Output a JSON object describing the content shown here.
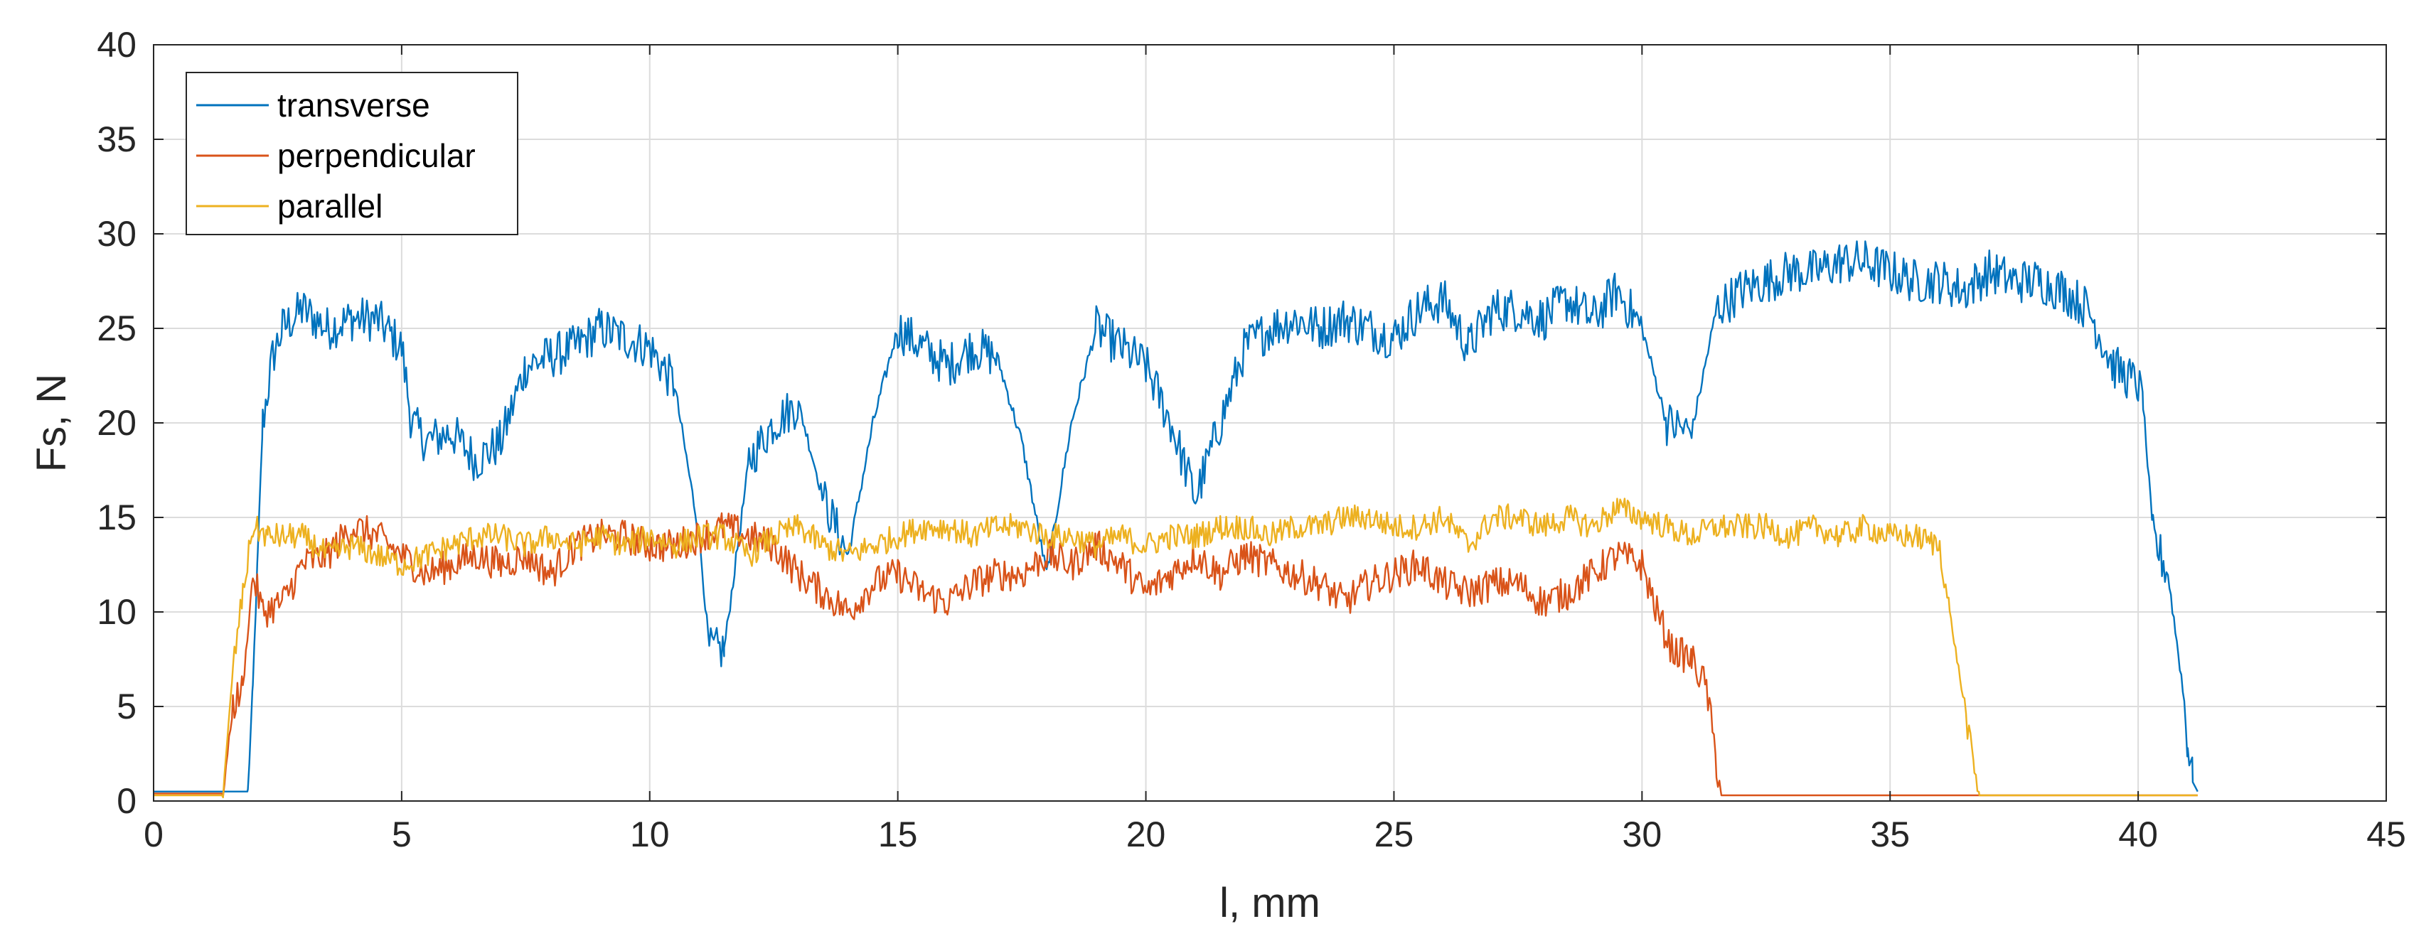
{
  "chart_data": {
    "type": "line",
    "title": "",
    "xlabel": "l, mm",
    "ylabel": "Fs, N",
    "xlim": [
      0,
      45
    ],
    "ylim": [
      0,
      40
    ],
    "xticks": [
      0,
      5,
      10,
      15,
      20,
      25,
      30,
      35,
      40,
      45
    ],
    "yticks": [
      0,
      5,
      10,
      15,
      20,
      25,
      30,
      35,
      40
    ],
    "grid": true,
    "legend_position": "top-left",
    "series": [
      {
        "name": "transverse",
        "color": "#0072BD",
        "x": [
          0,
          1.9,
          2.0,
          2.1,
          2.2,
          2.4,
          2.6,
          3.0,
          3.5,
          4.0,
          4.5,
          5.0,
          5.2,
          5.5,
          6.0,
          6.5,
          7.0,
          7.5,
          8.0,
          8.5,
          9.0,
          9.5,
          10.0,
          10.5,
          11.0,
          11.2,
          11.5,
          12.0,
          12.5,
          13.0,
          13.5,
          14.0,
          14.5,
          15.0,
          15.5,
          16.0,
          16.5,
          17.0,
          17.5,
          18.0,
          18.5,
          19.0,
          19.5,
          20.0,
          20.5,
          21.0,
          21.5,
          22.0,
          22.5,
          23.0,
          23.5,
          24.0,
          24.5,
          25.0,
          25.5,
          26.0,
          26.5,
          27.0,
          27.5,
          28.0,
          28.5,
          29.0,
          29.5,
          30.0,
          30.5,
          31.0,
          31.5,
          32.0,
          32.5,
          33.0,
          33.5,
          34.0,
          34.5,
          35.0,
          35.5,
          36.0,
          36.5,
          37.0,
          37.5,
          38.0,
          38.5,
          39.0,
          39.5,
          40.0,
          40.1,
          40.3,
          40.6,
          40.9,
          41.0,
          41.1,
          41.2
        ],
        "y": [
          0.5,
          0.5,
          6,
          13,
          20,
          23.5,
          25,
          26,
          25,
          25.5,
          25.5,
          24,
          20,
          19,
          19.5,
          18,
          19,
          23,
          23.5,
          24,
          25,
          24.5,
          24,
          22,
          14,
          8,
          8,
          18,
          20,
          21,
          16,
          13,
          20,
          25,
          24,
          23,
          24,
          23.5,
          19,
          12,
          20,
          25,
          24,
          23,
          20,
          16,
          20,
          24,
          25,
          25.5,
          25,
          25.5,
          25,
          24.5,
          26,
          26.5,
          24,
          26,
          26,
          25.5,
          26.5,
          25.5,
          27,
          25,
          20,
          19.5,
          26,
          27,
          27.5,
          28,
          28,
          28.5,
          28.5,
          28,
          27.5,
          27.5,
          27,
          28,
          27.5,
          27.5,
          27,
          26,
          23,
          22,
          21,
          14,
          12,
          6,
          3,
          1,
          0.5
        ],
        "noise": 1.2
      },
      {
        "name": "perpendicular",
        "color": "#D95319",
        "x": [
          0,
          1.4,
          1.6,
          1.8,
          2.0,
          2.2,
          2.6,
          3.0,
          3.5,
          4.0,
          4.5,
          5.0,
          5.5,
          6.0,
          6.5,
          7.0,
          7.5,
          8.0,
          8.5,
          9.0,
          9.5,
          10.0,
          10.5,
          11.0,
          11.5,
          12.0,
          12.5,
          13.0,
          13.5,
          14.0,
          14.5,
          15.0,
          15.5,
          16.0,
          16.5,
          17.0,
          17.5,
          18.0,
          18.5,
          19.0,
          19.5,
          20.0,
          20.5,
          21.0,
          21.5,
          22.0,
          22.5,
          23.0,
          23.5,
          24.0,
          24.5,
          25.0,
          25.5,
          26.0,
          26.5,
          27.0,
          27.5,
          28.0,
          28.5,
          29.0,
          29.5,
          30.0,
          30.3,
          30.6,
          31.0,
          31.3,
          31.5,
          31.6,
          41.2
        ],
        "y": [
          0.4,
          0.4,
          5,
          6,
          12,
          10,
          10.5,
          12.5,
          13,
          14.5,
          14,
          13,
          12,
          12.5,
          13,
          12.5,
          13,
          12,
          13.5,
          14,
          14,
          13.5,
          13.5,
          14,
          14.5,
          14,
          13.5,
          12,
          11,
          10,
          11.5,
          12,
          11,
          10.5,
          11.5,
          12,
          12,
          13,
          12.5,
          13.5,
          12.5,
          11,
          12,
          13,
          12,
          13,
          12.5,
          12,
          11.5,
          10.5,
          11.5,
          12,
          12.5,
          11.5,
          11,
          11.5,
          11.5,
          10.5,
          11,
          12,
          13,
          12.5,
          10,
          8,
          7.5,
          6,
          2,
          0.3,
          0.3
        ],
        "noise": 0.9
      },
      {
        "name": "parallel",
        "color": "#EDB120",
        "x": [
          0,
          1.4,
          1.6,
          1.8,
          2.0,
          2.3,
          2.6,
          3.0,
          3.5,
          4.0,
          4.5,
          5.0,
          5.5,
          6.0,
          6.5,
          7.0,
          7.5,
          8.0,
          8.5,
          9.0,
          9.5,
          10.0,
          10.5,
          11.0,
          11.5,
          12.0,
          12.5,
          13.0,
          13.5,
          14.0,
          14.5,
          15.0,
          15.5,
          16.0,
          16.5,
          17.0,
          17.5,
          18.0,
          18.5,
          19.0,
          19.5,
          20.0,
          20.5,
          21.0,
          21.5,
          22.0,
          22.5,
          23.0,
          23.5,
          24.0,
          24.5,
          25.0,
          25.5,
          26.0,
          26.5,
          27.0,
          27.5,
          28.0,
          28.5,
          29.0,
          29.5,
          30.0,
          30.5,
          31.0,
          31.5,
          32.0,
          32.5,
          33.0,
          33.5,
          34.0,
          34.5,
          35.0,
          35.5,
          36.0,
          36.2,
          36.5,
          36.7,
          36.8,
          41.2
        ],
        "y": [
          0.3,
          0.3,
          7,
          11,
          14.5,
          14,
          14,
          14,
          13,
          13.5,
          13,
          12.5,
          13,
          13.5,
          14,
          14,
          13.5,
          14,
          13.5,
          14,
          13.5,
          14,
          13.5,
          14,
          14,
          13,
          14,
          14.5,
          13.5,
          13,
          13.5,
          14,
          14.5,
          14.5,
          14,
          14.5,
          14.5,
          14,
          14,
          13.5,
          14,
          13.5,
          14,
          14,
          14.5,
          14.5,
          14,
          14.5,
          14.5,
          15,
          15,
          14.5,
          14.5,
          15,
          13.5,
          15,
          15,
          14.5,
          15,
          14.5,
          15.5,
          15,
          14.5,
          14,
          14.5,
          14.5,
          14.5,
          14,
          14.5,
          14,
          14.5,
          14,
          14,
          13.5,
          10,
          5,
          1.5,
          0.3,
          0.3
        ],
        "noise": 0.7
      }
    ]
  }
}
